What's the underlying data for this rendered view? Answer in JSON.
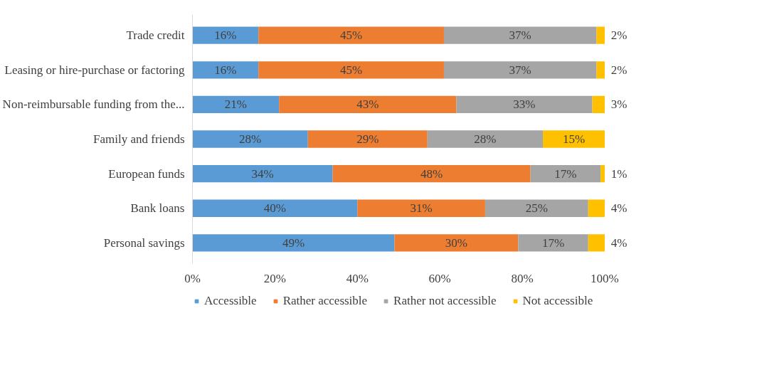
{
  "chart_data": {
    "type": "bar",
    "orientation": "horizontal",
    "stacked": true,
    "categories": [
      "Trade credit",
      "Leasing or hire-purchase or factoring",
      "Non-reimbursable funding from the...",
      "Family and friends",
      "European funds",
      "Bank loans",
      "Personal savings"
    ],
    "series": [
      {
        "name": "Accessible",
        "color": "#5b9bd5",
        "values": [
          16,
          16,
          21,
          28,
          34,
          40,
          49
        ],
        "value_labels": [
          "16%",
          "16%",
          "21%",
          "28%",
          "34%",
          "40%",
          "49%"
        ]
      },
      {
        "name": "Rather accessible",
        "color": "#ed7d31",
        "values": [
          45,
          45,
          43,
          29,
          48,
          31,
          30
        ],
        "value_labels": [
          "45%",
          "45%",
          "43%",
          "29%",
          "48%",
          "31%",
          "30%"
        ]
      },
      {
        "name": "Rather not accessible",
        "color": "#a5a5a5",
        "values": [
          37,
          37,
          33,
          28,
          17,
          25,
          17
        ],
        "value_labels": [
          "37%",
          "37%",
          "33%",
          "28%",
          "17%",
          "25%",
          "17%"
        ]
      },
      {
        "name": "Not accessible",
        "color": "#ffc000",
        "values": [
          2,
          2,
          3,
          15,
          1,
          4,
          4
        ],
        "value_labels": [
          "2%",
          "2%",
          "3%",
          "15%",
          "1%",
          "4%",
          "4%"
        ]
      }
    ],
    "xlim": [
      0,
      100
    ],
    "xticks": [
      {
        "value": 0,
        "label": "0%"
      },
      {
        "value": 20,
        "label": "20%"
      },
      {
        "value": 40,
        "label": "40%"
      },
      {
        "value": 60,
        "label": "60%"
      },
      {
        "value": 80,
        "label": "80%"
      },
      {
        "value": 100,
        "label": "100%"
      }
    ],
    "grid": false,
    "legend": "bottom"
  }
}
